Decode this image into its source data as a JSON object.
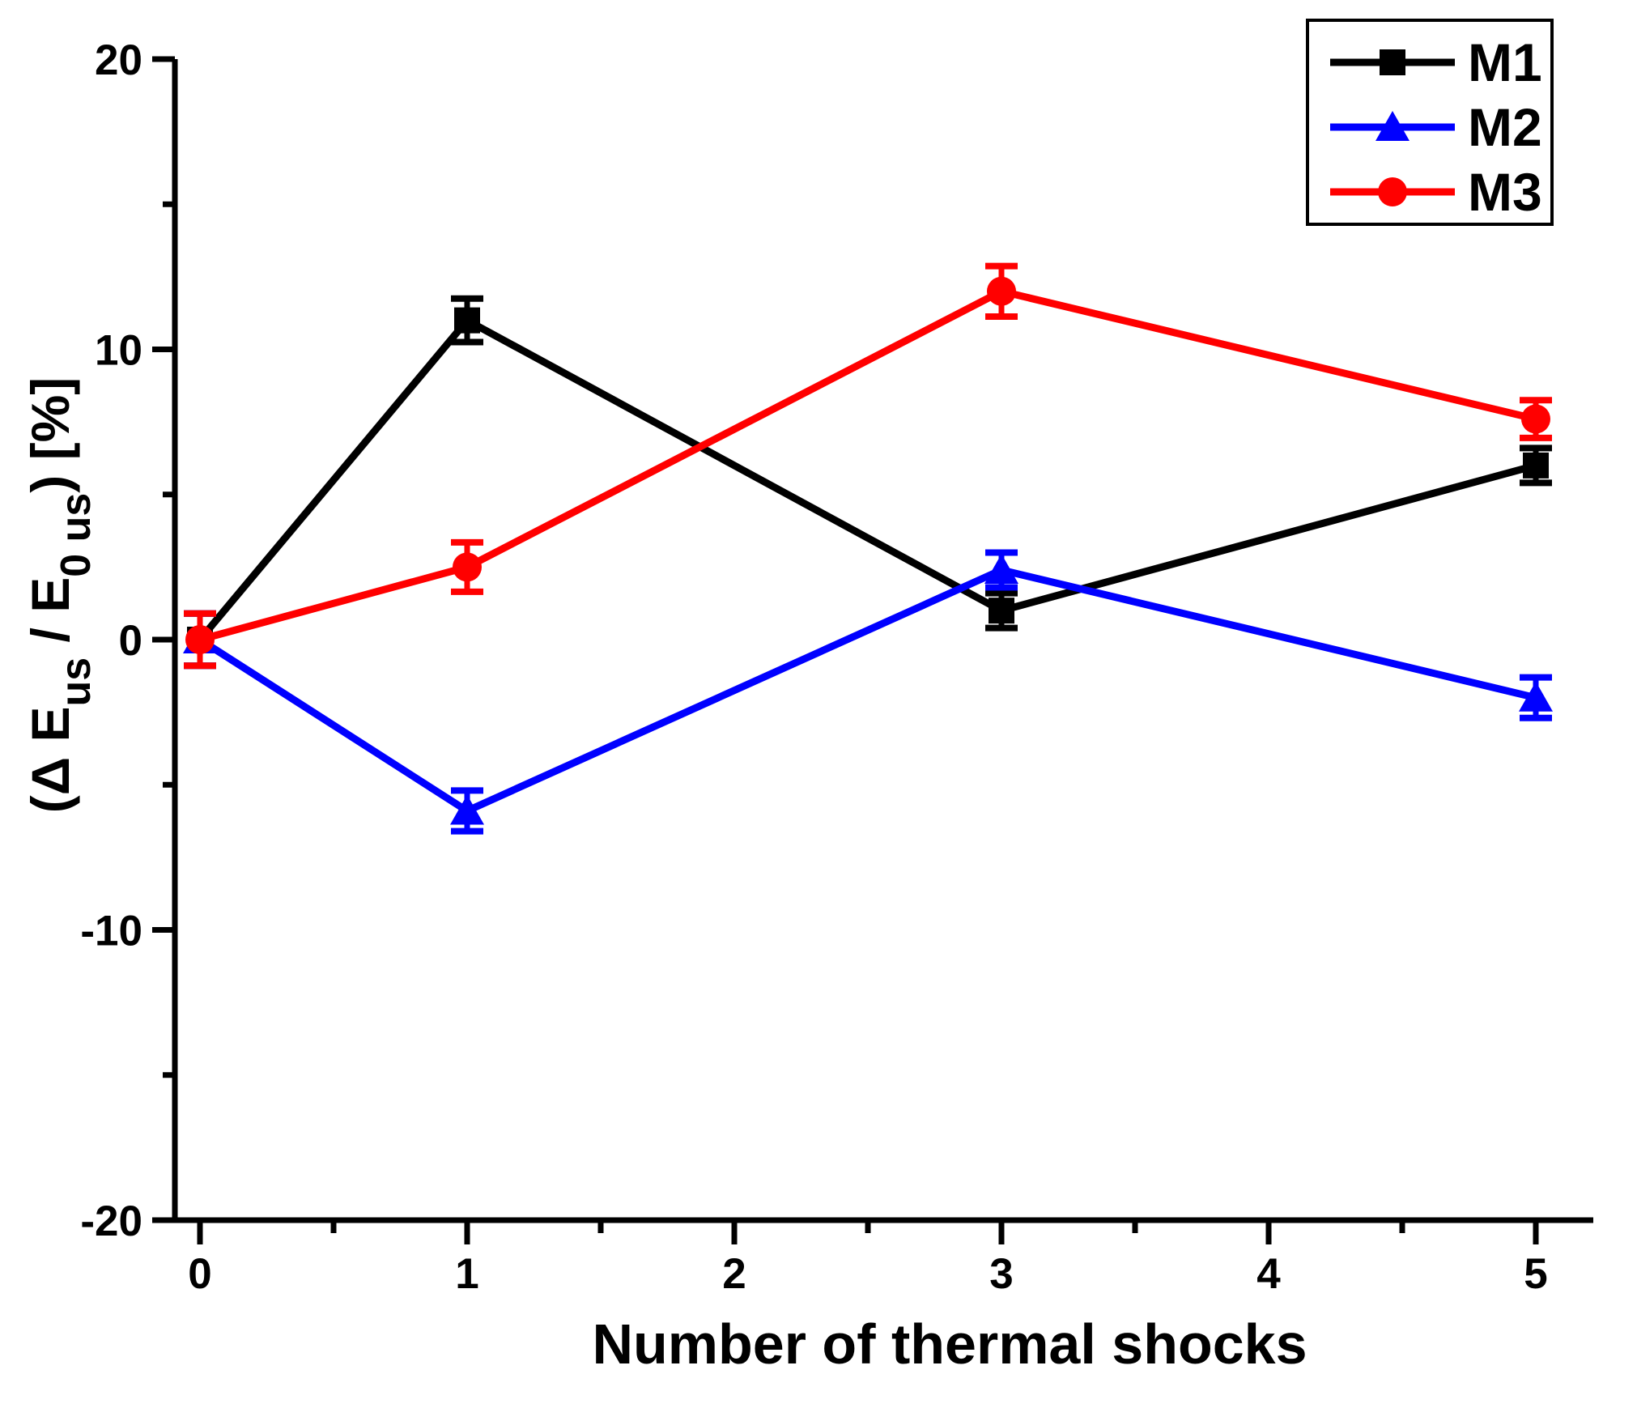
{
  "chart_data": {
    "type": "line",
    "title": "",
    "xlabel": "Number of thermal shocks",
    "ylabel_plain": "(Δ E_us / E_0 us) [%]",
    "ylabel_parts": [
      {
        "text": "(Δ E",
        "sub": false
      },
      {
        "text": "us",
        "sub": true
      },
      {
        "text": " / E",
        "sub": false
      },
      {
        "text": "0 us",
        "sub": true
      },
      {
        "text": ") [%]",
        "sub": false
      }
    ],
    "xlim": [
      0,
      5
    ],
    "ylim": [
      -20,
      20
    ],
    "x_ticks": [
      0,
      1,
      2,
      3,
      4,
      5
    ],
    "x_minor_ticks": [
      0.5,
      1.5,
      2.5,
      3.5,
      4.5
    ],
    "y_ticks": [
      -20,
      -10,
      0,
      10,
      20
    ],
    "y_minor_ticks": [
      -15,
      -5,
      5,
      15
    ],
    "grid": false,
    "background": "#ffffff",
    "axis_color": "#000000",
    "legend_position": "top-right",
    "series": [
      {
        "name": "M1",
        "color": "#000000",
        "marker": "square",
        "x": [
          0,
          1,
          3,
          5
        ],
        "y": [
          0,
          11,
          1,
          6
        ],
        "yerr": [
          0.9,
          0.75,
          0.6,
          0.6
        ]
      },
      {
        "name": "M2",
        "color": "#0000ff",
        "marker": "triangle",
        "x": [
          0,
          1,
          3,
          5
        ],
        "y": [
          0,
          -5.9,
          2.4,
          -2
        ],
        "yerr": [
          0.9,
          0.7,
          0.6,
          0.7
        ]
      },
      {
        "name": "M3",
        "color": "#ff0000",
        "marker": "circle",
        "x": [
          0,
          1,
          3,
          5
        ],
        "y": [
          0,
          2.5,
          12,
          7.6
        ],
        "yerr": [
          0.9,
          0.85,
          0.87,
          0.65
        ]
      }
    ]
  }
}
